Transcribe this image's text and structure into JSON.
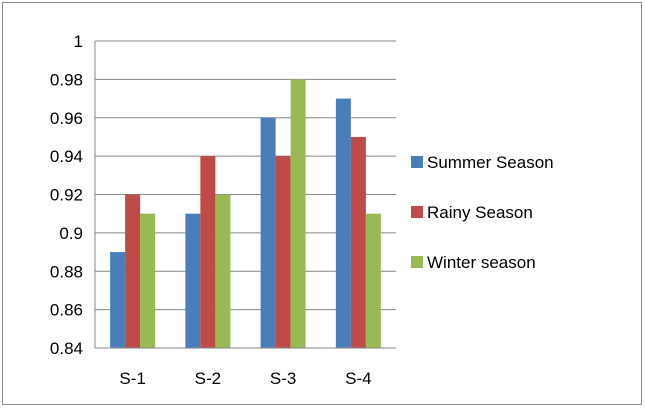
{
  "chart_data": {
    "type": "bar",
    "title": "",
    "xlabel": "",
    "ylabel": "",
    "categories": [
      "S-1",
      "S-2",
      "S-3",
      "S-4"
    ],
    "series": [
      {
        "name": "Summer Season",
        "color": "#4a7ebb",
        "values": [
          0.89,
          0.91,
          0.96,
          0.97
        ]
      },
      {
        "name": "Rainy Season",
        "color": "#be4b48",
        "values": [
          0.92,
          0.94,
          0.94,
          0.95
        ]
      },
      {
        "name": "Winter season",
        "color": "#98b954",
        "values": [
          0.91,
          0.92,
          0.98,
          0.91
        ]
      }
    ],
    "ylim": [
      0.84,
      1
    ],
    "yticks": [
      "0.84",
      "0.86",
      "0.88",
      "0.9",
      "0.92",
      "0.94",
      "0.96",
      "0.98",
      "1"
    ],
    "grid": true,
    "legend": "right",
    "axis_color": "#868686",
    "grid_color": "#868686"
  }
}
